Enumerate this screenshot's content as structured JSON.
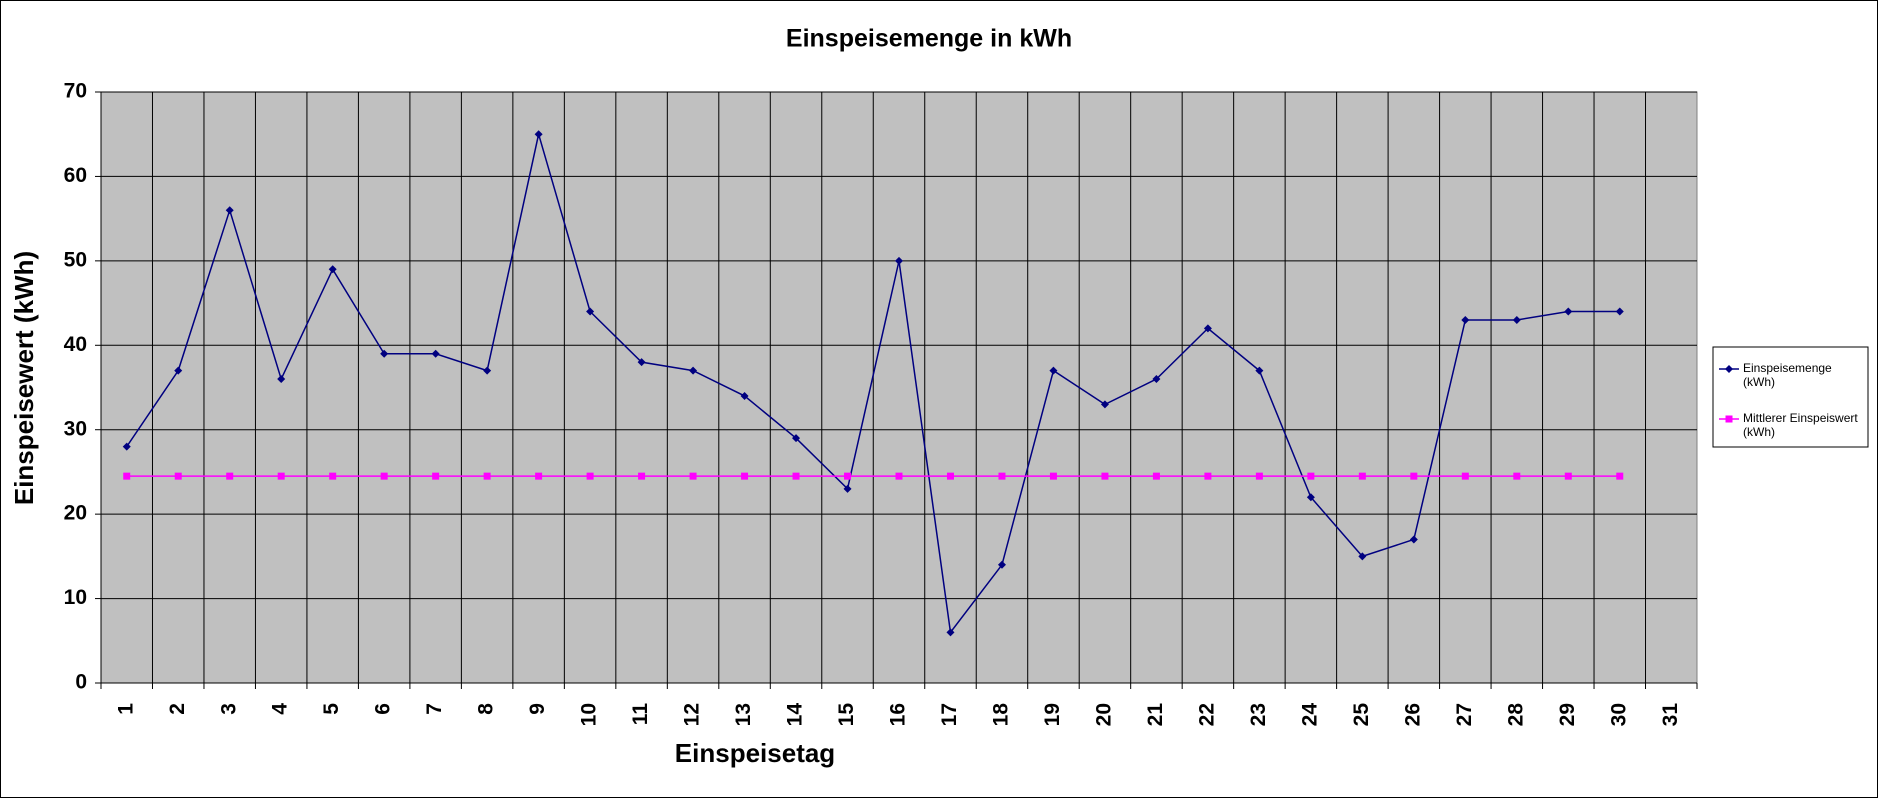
{
  "chart_data": {
    "type": "line",
    "title": "Einspeisemenge in kWh",
    "x_label": "Einspeisetag",
    "y_label": "Einspeisewert  (kWh)",
    "categories": [
      "1",
      "2",
      "3",
      "4",
      "5",
      "6",
      "7",
      "8",
      "9",
      "10",
      "11",
      "12",
      "13",
      "14",
      "15",
      "16",
      "17",
      "18",
      "19",
      "20",
      "21",
      "22",
      "23",
      "24",
      "25",
      "26",
      "27",
      "28",
      "29",
      "30",
      "31"
    ],
    "series": [
      {
        "name": "Einspeisemenge (kWh)",
        "color": "#000080",
        "marker": "diamond",
        "values": [
          28,
          37,
          56,
          36,
          49,
          39,
          39,
          37,
          65,
          44,
          38,
          37,
          34,
          29,
          23,
          50,
          6,
          14,
          37,
          33,
          36,
          42,
          37,
          22,
          15,
          17,
          43,
          43,
          44,
          44,
          null
        ]
      },
      {
        "name": "Mittlerer Einspeiswert (kWh)",
        "color": "#ff00ff",
        "marker": "square",
        "values": [
          24.5,
          24.5,
          24.5,
          24.5,
          24.5,
          24.5,
          24.5,
          24.5,
          24.5,
          24.5,
          24.5,
          24.5,
          24.5,
          24.5,
          24.5,
          24.5,
          24.5,
          24.5,
          24.5,
          24.5,
          24.5,
          24.5,
          24.5,
          24.5,
          24.5,
          24.5,
          24.5,
          24.5,
          24.5,
          24.5,
          null
        ]
      }
    ],
    "ylim": [
      0,
      70
    ],
    "yticks": [
      0,
      10,
      20,
      30,
      40,
      50,
      60,
      70
    ],
    "grid": true,
    "legend": "right"
  }
}
